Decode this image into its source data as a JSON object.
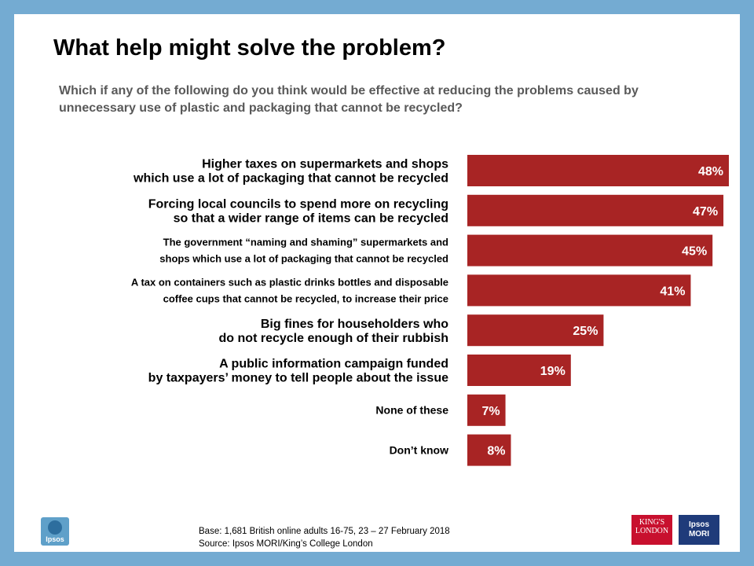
{
  "title": "What help might solve the problem?",
  "subtitle": "Which if any of the following do you think would be effective at reducing the problems caused by unnecessary use of plastic and packaging that cannot be recycled?",
  "chart_data": {
    "type": "bar",
    "orientation": "horizontal",
    "categories": [
      [
        "Higher taxes on supermarkets and shops",
        "which use a lot of packaging that cannot be recycled"
      ],
      [
        "Forcing local councils to spend more on recycling",
        "so that a wider range of items can be recycled"
      ],
      [
        "The government “naming and shaming” supermarkets and",
        "shops which use a lot of packaging that cannot be recycled"
      ],
      [
        "A tax on containers such as plastic drinks bottles and disposable",
        "coffee cups that cannot be recycled, to increase their price"
      ],
      [
        "Big fines for householders who",
        "do not recycle enough of their rubbish"
      ],
      [
        "A public information campaign funded",
        "by taxpayers’ money to tell people about the issue"
      ],
      [
        "None of these"
      ],
      [
        "Don’t know"
      ]
    ],
    "values": [
      48,
      47,
      45,
      41,
      25,
      19,
      7,
      8
    ],
    "labels": [
      "48%",
      "47%",
      "45%",
      "41%",
      "25%",
      "19%",
      "7%",
      "8%"
    ],
    "xlim": [
      0,
      48
    ],
    "bar_color": "#a82424",
    "label_color": "#ffffff"
  },
  "footer": {
    "base": "Base: 1,681 British online adults 16-75, 23 – 27 February 2018",
    "source": "Source: Ipsos MORI/King’s College London"
  },
  "logos": {
    "ipsos": "Ipsos",
    "ipsos_mori_wordmark": "Ipsos MORI",
    "kcl_line1": "KING'S",
    "kcl_line2": "LONDON",
    "mori_line1": "Ipsos",
    "mori_line2": "MORI"
  }
}
